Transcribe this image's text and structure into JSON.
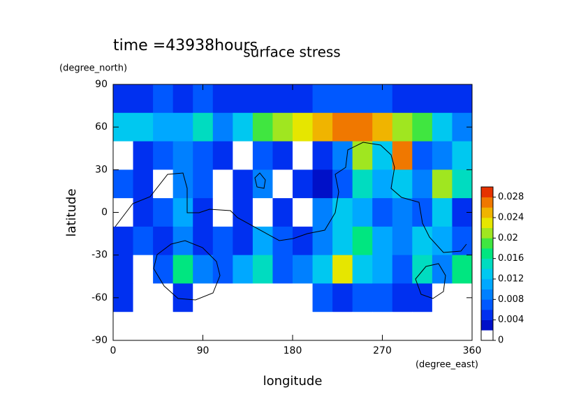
{
  "chart_data": {
    "type": "heatmap",
    "title": "time =43938hours",
    "subtitle": "surface stress",
    "x_label": "longitude",
    "x_unit": "(degree_east)",
    "y_label": "latitude",
    "y_unit": "(degree_north)",
    "xlim": [
      0,
      360
    ],
    "ylim": [
      -90,
      90
    ],
    "xticks": [
      0,
      90,
      180,
      270,
      360
    ],
    "yticks": [
      -90,
      -60,
      -30,
      0,
      30,
      60,
      90
    ],
    "x": [
      10,
      30,
      50,
      70,
      90,
      110,
      130,
      150,
      170,
      190,
      210,
      230,
      250,
      270,
      290,
      310,
      330,
      350
    ],
    "y": [
      80,
      60,
      40,
      20,
      0,
      -20,
      -40,
      -60,
      -80
    ],
    "z": [
      [
        0.004,
        0.005,
        0.006,
        0.005,
        0.006,
        0.005,
        0.004,
        0.004,
        0.004,
        0.005,
        0.006,
        0.006,
        0.006,
        0.006,
        0.005,
        0.005,
        0.004,
        0.004
      ],
      [
        0.012,
        0.012,
        0.01,
        0.01,
        0.014,
        0.008,
        0.012,
        0.018,
        0.02,
        0.022,
        0.024,
        0.026,
        0.026,
        0.024,
        0.02,
        0.018,
        0.012,
        0.008
      ],
      [
        0.001,
        0.004,
        0.006,
        0.008,
        0.006,
        0.004,
        0.001,
        0.006,
        0.004,
        0.001,
        0.004,
        0.008,
        0.02,
        0.012,
        0.026,
        0.006,
        0.008,
        0.012
      ],
      [
        0.006,
        0.004,
        0.001,
        0.008,
        0.006,
        0.001,
        0.004,
        0.008,
        0.001,
        0.004,
        0.002,
        0.006,
        0.014,
        0.01,
        0.012,
        0.008,
        0.02,
        0.014
      ],
      [
        0.001,
        0.004,
        0.006,
        0.01,
        0.004,
        0.001,
        0.004,
        0.001,
        0.004,
        0.001,
        0.008,
        0.012,
        0.01,
        0.006,
        0.008,
        0.006,
        0.012,
        0.004
      ],
      [
        0.004,
        0.006,
        0.004,
        0.008,
        0.004,
        0.006,
        0.004,
        0.01,
        0.006,
        0.004,
        0.008,
        0.012,
        0.016,
        0.01,
        0.008,
        0.012,
        0.01,
        0.006
      ],
      [
        0.004,
        0.001,
        0.006,
        0.016,
        0.008,
        0.006,
        0.01,
        0.014,
        0.006,
        0.008,
        0.012,
        0.022,
        0.012,
        0.01,
        0.006,
        0.014,
        0.008,
        0.016
      ],
      [
        0.004,
        0.001,
        0.001,
        0.004,
        0.001,
        0.001,
        0.001,
        0.001,
        0.001,
        0.001,
        0.006,
        0.004,
        0.006,
        0.006,
        0.004,
        0.004,
        0.001,
        0.001
      ],
      [
        0,
        0,
        0,
        0,
        0,
        0,
        0,
        0,
        0,
        0,
        0,
        0,
        0,
        0,
        0,
        0,
        0,
        0
      ]
    ],
    "levels": [
      0,
      0.002,
      0.004,
      0.006,
      0.008,
      0.01,
      0.012,
      0.014,
      0.016,
      0.018,
      0.02,
      0.022,
      0.024,
      0.026,
      0.028,
      0.03
    ],
    "colors": [
      "#ffffff",
      "#0010c8",
      "#0030f0",
      "#0058ff",
      "#0080ff",
      "#00a8ff",
      "#00c8f0",
      "#00dcc0",
      "#00e680",
      "#40e640",
      "#a0e620",
      "#e6e600",
      "#f0b400",
      "#f07800",
      "#e63200"
    ],
    "cticks": [
      0,
      0.004,
      0.008,
      0.012,
      0.016,
      0.02,
      0.024,
      0.028
    ]
  }
}
